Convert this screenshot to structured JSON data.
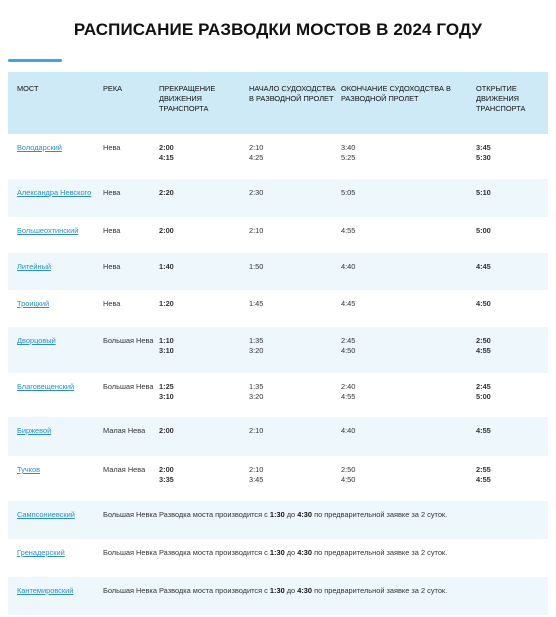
{
  "title": "РАСПИСАНИЕ РАЗВОДКИ МОСТОВ В 2024 ГОДУ",
  "headers": {
    "bridge": "МОСТ",
    "river": "РЕКА",
    "stop_traffic": "ПРЕКРАЩЕНИЕ ДВИЖЕНИЯ ТРАНСПОРТА",
    "start_navigation": "НАЧАЛО СУДОХОДСТВА В РАЗВОДНОЙ ПРОЛЕТ",
    "end_navigation": "ОКОНЧАНИЕ СУДОХОДСТВА В РАЗВОДНОЙ ПРОЛЕТ",
    "open_traffic": "ОТКРЫТИЕ ДВИЖЕНИЯ ТРАНСПОРТА"
  },
  "rows": [
    {
      "bridge": "Володарский",
      "river": "Нева",
      "stop": [
        "2:00",
        "4:15"
      ],
      "start_nav": [
        "2:10",
        "4:25"
      ],
      "end_nav": [
        "3:40",
        "5:25"
      ],
      "open": [
        "3:45",
        "5:30"
      ]
    },
    {
      "bridge": "Александра Невского",
      "river": "Нева",
      "stop": [
        "2:20"
      ],
      "start_nav": [
        "2:30"
      ],
      "end_nav": [
        "5:05"
      ],
      "open": [
        "5:10"
      ]
    },
    {
      "bridge": "Большеохтинский",
      "river": "Нева",
      "stop": [
        "2:00"
      ],
      "start_nav": [
        "2:10"
      ],
      "end_nav": [
        "4:55"
      ],
      "open": [
        "5:00"
      ]
    },
    {
      "bridge": "Литейный",
      "river": "Нева",
      "stop": [
        "1:40"
      ],
      "start_nav": [
        "1:50"
      ],
      "end_nav": [
        "4:40"
      ],
      "open": [
        "4:45"
      ]
    },
    {
      "bridge": "Троицкий",
      "river": "Нева",
      "stop": [
        "1:20"
      ],
      "start_nav": [
        "1:45"
      ],
      "end_nav": [
        "4:45"
      ],
      "open": [
        "4:50"
      ]
    },
    {
      "bridge": "Дворцовый",
      "river": "Большая Нева",
      "stop": [
        "1:10",
        "3:10"
      ],
      "start_nav": [
        "1:35",
        "3:20"
      ],
      "end_nav": [
        "2:45",
        "4:50"
      ],
      "open": [
        "2:50",
        "4:55"
      ]
    },
    {
      "bridge": "Благовещенский",
      "river": "Большая Нева",
      "stop": [
        "1:25",
        "3:10"
      ],
      "start_nav": [
        "1:35",
        "3:20"
      ],
      "end_nav": [
        "2:40",
        "4:55"
      ],
      "open": [
        "2:45",
        "5:00"
      ]
    },
    {
      "bridge": "Биржевой",
      "river": "Малая Нева",
      "stop": [
        "2:00"
      ],
      "start_nav": [
        "2:10"
      ],
      "end_nav": [
        "4:40"
      ],
      "open": [
        "4:55"
      ]
    },
    {
      "bridge": "Тучков",
      "river": "Малая Нева",
      "stop": [
        "2:00",
        "3:35"
      ],
      "start_nav": [
        "2:10",
        "3:45"
      ],
      "end_nav": [
        "2:50",
        "4:50"
      ],
      "open": [
        "2:55",
        "4:55"
      ]
    },
    {
      "bridge": "Сампсониевский",
      "river": "Большая Невка",
      "note": {
        "prefix": "Разводка моста производится с ",
        "from": "1:30",
        "mid": " до ",
        "to": "4:30",
        "suffix": " по предварительной заявке за 2 суток."
      }
    },
    {
      "bridge": "Гренадерский",
      "river": "Большая Невка",
      "note": {
        "prefix": "Разводка моста производится с ",
        "from": "1:30",
        "mid": " до ",
        "to": "4:30",
        "suffix": " по предварительной заявке за 2 суток."
      }
    },
    {
      "bridge": "Кантемировский",
      "river": "Большая Невка",
      "note": {
        "prefix": "Разводка моста производится с ",
        "from": "1:30",
        "mid": " до ",
        "to": "4:30",
        "suffix": " по предварительной заявке за 2 суток."
      }
    }
  ]
}
